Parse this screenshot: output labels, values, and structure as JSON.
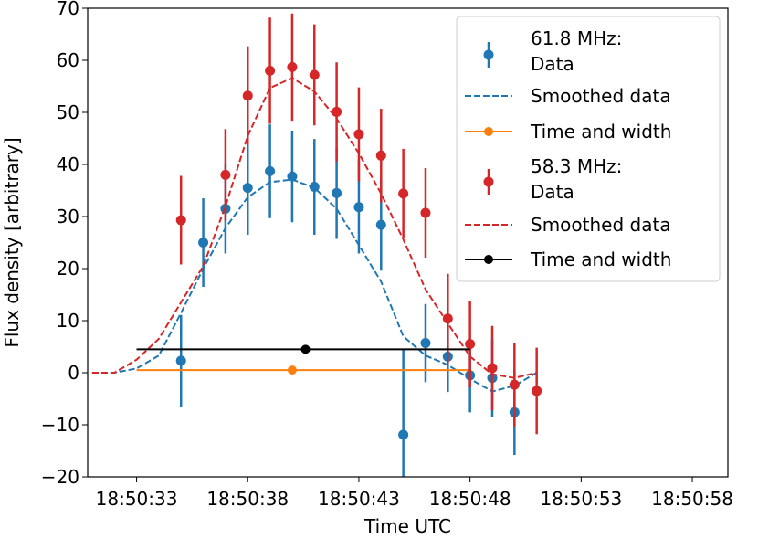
{
  "chart_data": {
    "type": "scatter",
    "title": "",
    "xlabel": "Time UTC",
    "ylabel": "Flux density [arbitrary]",
    "xlim": [
      -2.2,
      26.6
    ],
    "ylim": [
      -20,
      70
    ],
    "x_unit": "seconds after 18:50:33",
    "xticks": [
      {
        "value": 0,
        "label": "18:50:33"
      },
      {
        "value": 5,
        "label": "18:50:38"
      },
      {
        "value": 10,
        "label": "18:50:43"
      },
      {
        "value": 15,
        "label": "18:50:48"
      },
      {
        "value": 20,
        "label": "18:50:53"
      },
      {
        "value": 25,
        "label": "18:50:58"
      }
    ],
    "yticks": [
      -20,
      -10,
      0,
      10,
      20,
      30,
      40,
      50,
      60,
      70
    ],
    "legend_position": "top-right",
    "series": [
      {
        "name": "61.8 MHz: Data",
        "legend_lines": [
          "61.8 MHz:",
          "Data"
        ],
        "kind": "errorbar",
        "color": "#1f77b4",
        "x": [
          2,
          3,
          4,
          5,
          6,
          7,
          8,
          9,
          10,
          11,
          12,
          13,
          14,
          15,
          16,
          17
        ],
        "y": [
          2.3,
          25.0,
          31.5,
          35.5,
          38.7,
          37.7,
          35.7,
          34.5,
          31.8,
          28.4,
          -11.9,
          5.7,
          3.1,
          -0.5,
          -1.0,
          -7.6
        ],
        "err": [
          8.8,
          8.5,
          8.6,
          9.0,
          9.0,
          8.8,
          9.2,
          8.8,
          8.9,
          8.8,
          16.5,
          7.5,
          6.8,
          7.1,
          7.5,
          8.2
        ]
      },
      {
        "name": "Smoothed data",
        "kind": "line",
        "style": "dashed",
        "color": "#1f77b4",
        "x": [
          -2,
          -1,
          0,
          1,
          2,
          3,
          4,
          5,
          6,
          7,
          8,
          9,
          10,
          11,
          12,
          13,
          14,
          15,
          16,
          17,
          18,
          19
        ],
        "y": [
          0,
          0,
          0.8,
          3.3,
          11.5,
          20.0,
          27.8,
          33.7,
          36.6,
          37.1,
          35.5,
          31.5,
          24.5,
          17.5,
          7.0,
          3.3,
          1.5,
          -1.2,
          -3.6,
          -2.5,
          0,
          null
        ]
      },
      {
        "name": "Time and width",
        "kind": "line-marker",
        "color": "#ff7f0e",
        "x": [
          0,
          15
        ],
        "y": [
          0.5,
          0.5
        ],
        "center": [
          7,
          0.5
        ]
      },
      {
        "name": "58.3 MHz: Data",
        "legend_lines": [
          "58.3 MHz:",
          "Data"
        ],
        "kind": "errorbar",
        "color": "#d62728",
        "x": [
          2,
          4,
          5,
          6,
          7,
          8,
          9,
          10,
          11,
          12,
          13,
          14,
          15,
          16,
          17,
          18
        ],
        "y": [
          29.3,
          38.0,
          53.2,
          58.0,
          58.7,
          57.2,
          50.1,
          45.8,
          41.7,
          34.4,
          30.7,
          10.4,
          5.5,
          0.9,
          -2.3,
          -3.5
        ],
        "err": [
          8.5,
          8.8,
          9.5,
          10.2,
          10.3,
          9.7,
          9.5,
          9.0,
          9.0,
          8.6,
          8.6,
          8.6,
          8.3,
          8.1,
          8.0,
          8.3
        ]
      },
      {
        "name": "Smoothed data",
        "kind": "line",
        "style": "dashed",
        "color": "#d62728",
        "x": [
          -2,
          -1,
          0,
          1,
          2,
          3,
          4,
          5,
          6,
          7,
          8,
          9,
          10,
          11,
          12,
          13,
          14,
          15,
          16,
          17,
          18,
          19
        ],
        "y": [
          0,
          0,
          2.5,
          6.5,
          13.5,
          20.5,
          32.0,
          45.5,
          54.7,
          56.6,
          54.0,
          48.8,
          42.1,
          34.4,
          25.6,
          16.0,
          9.5,
          3.1,
          -0.3,
          -1.0,
          0,
          null
        ]
      },
      {
        "name": "Time and width",
        "kind": "line-marker",
        "color": "#000000",
        "x": [
          0,
          15
        ],
        "y": [
          4.5,
          4.5
        ],
        "center": [
          7.6,
          4.5
        ]
      }
    ]
  }
}
